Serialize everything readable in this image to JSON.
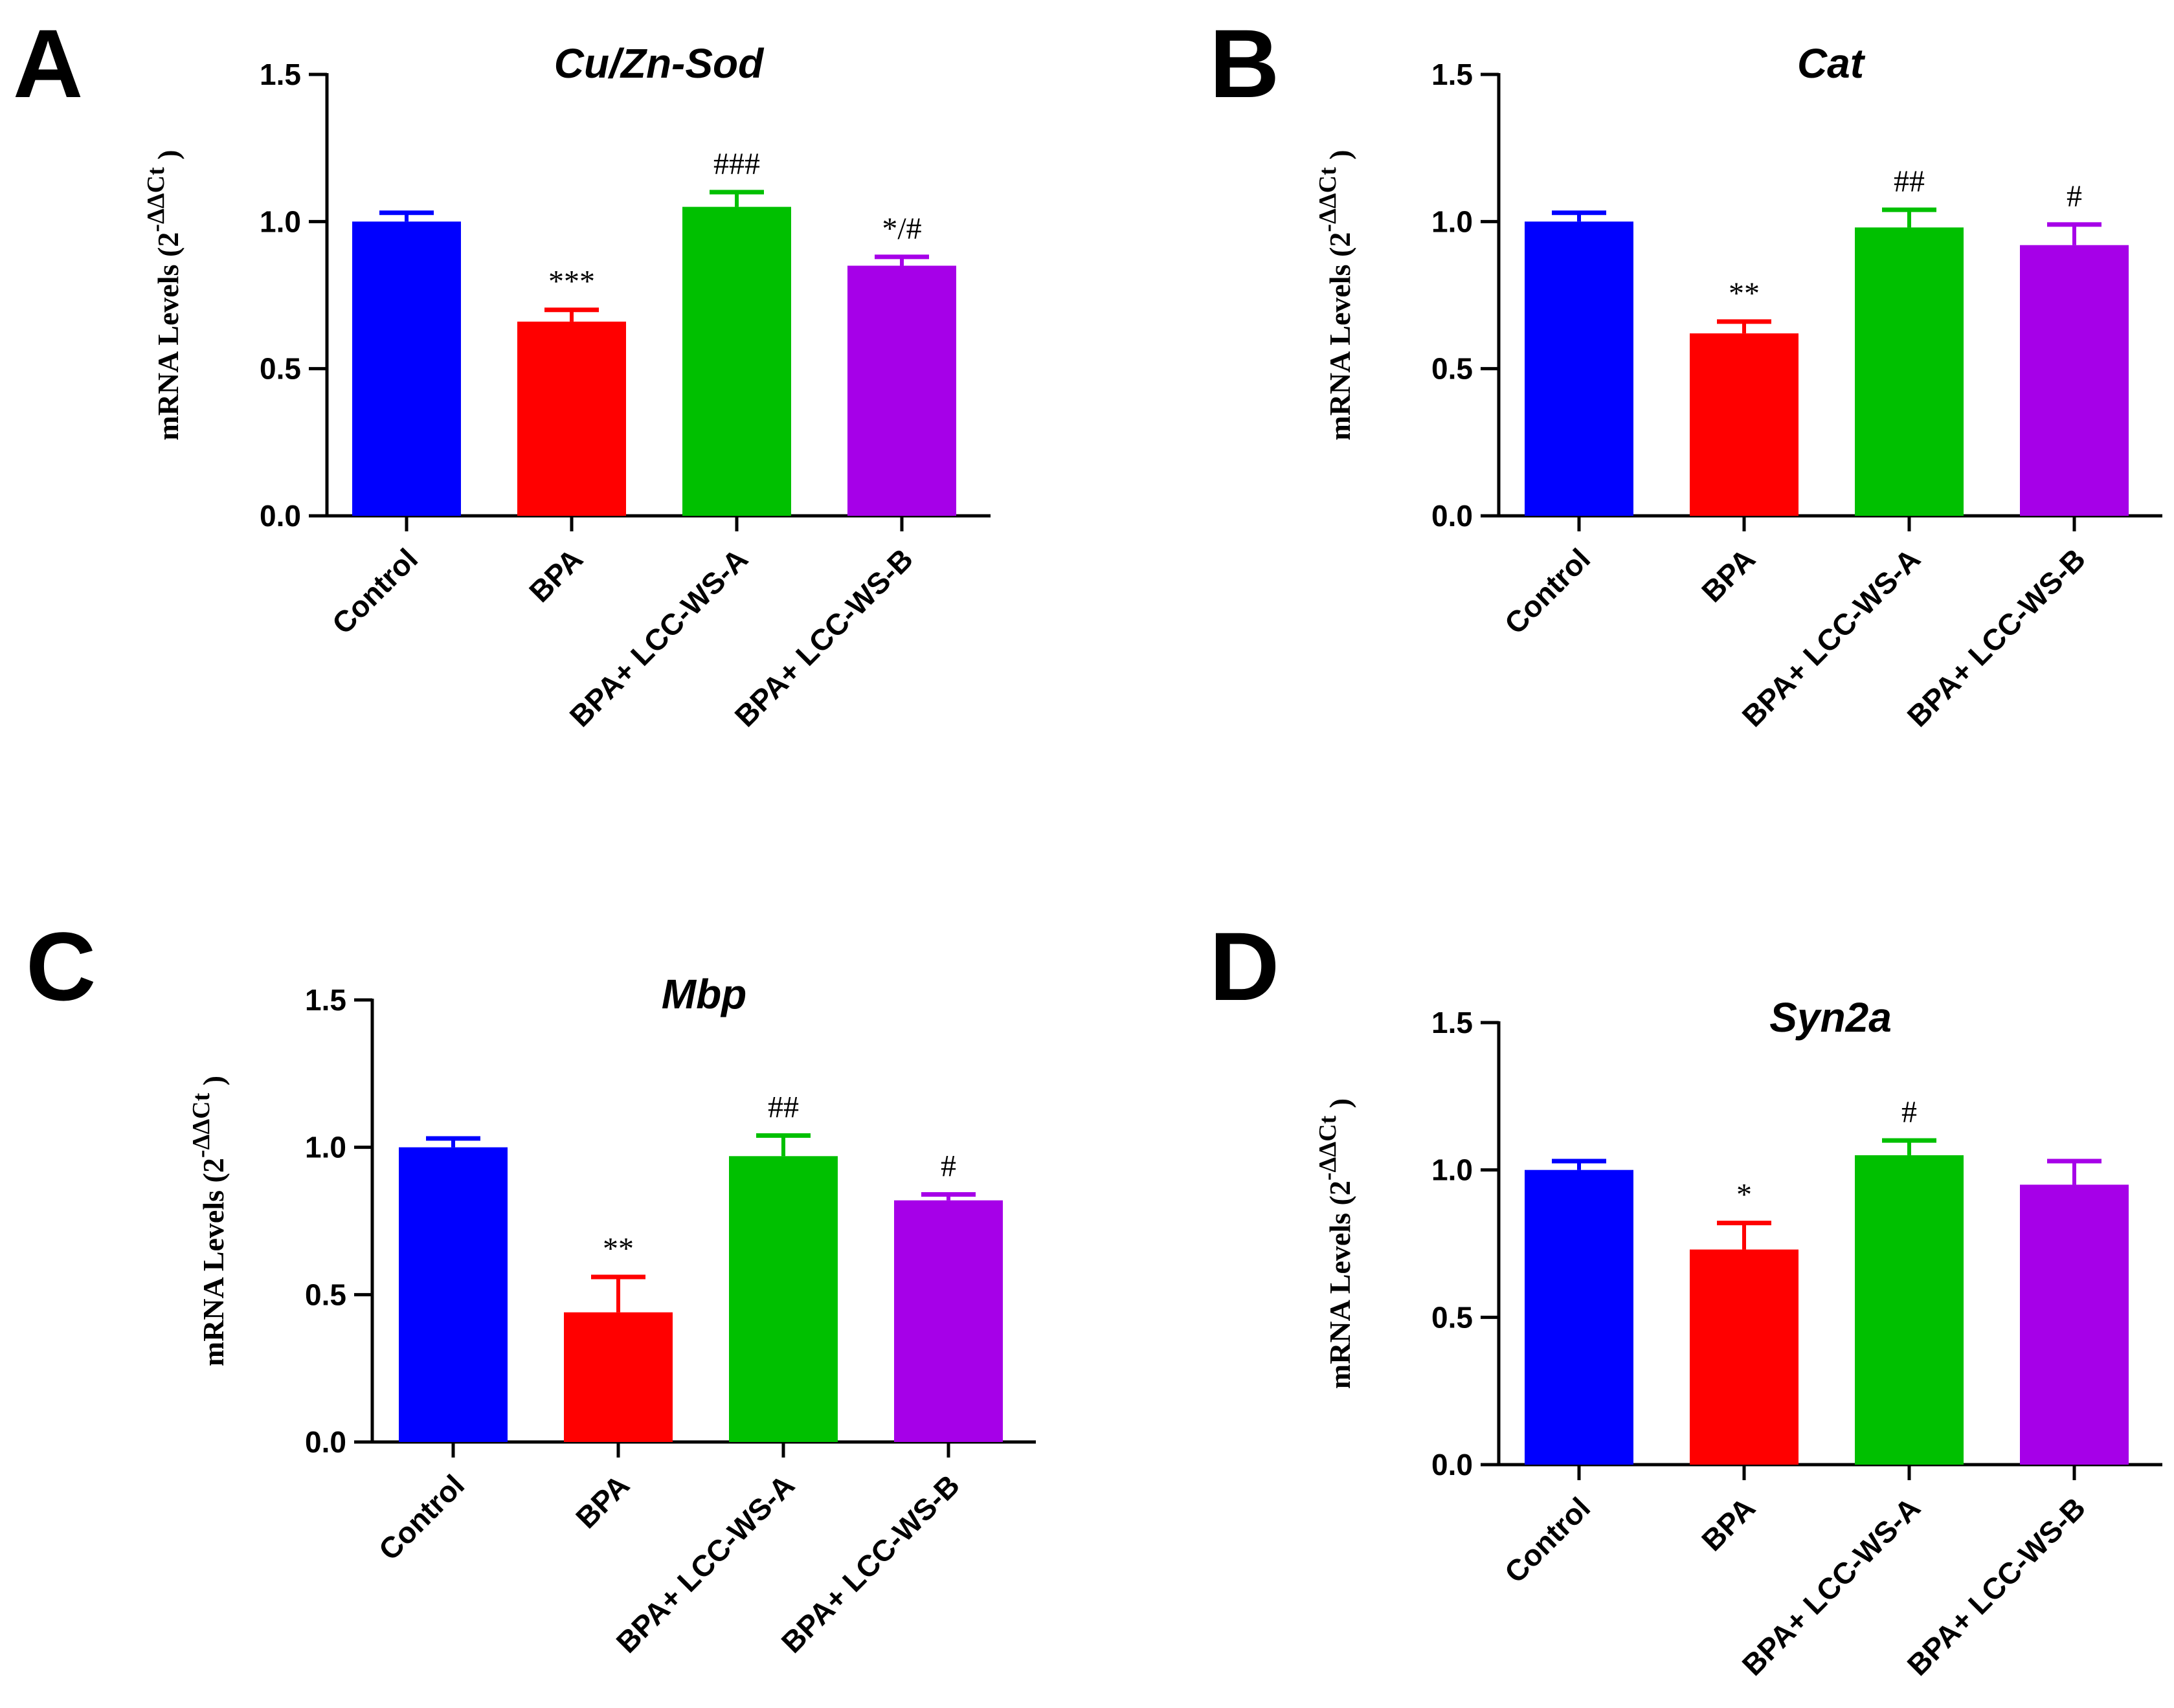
{
  "chart_data": [
    {
      "panel": "A",
      "type": "bar",
      "title": "Cu/Zn-Sod",
      "ylabel": "mRNA Levels (2",
      "ylabel_sup": "-ΔΔCt",
      "ylabel_close": ")",
      "ylim": [
        0,
        1.5
      ],
      "yticks": [
        "0.0",
        "0.5",
        "1.0",
        "1.5"
      ],
      "categories": [
        "Control",
        "BPA",
        "BPA+ LCC-WS-A",
        "BPA+ LCC-WS-B"
      ],
      "values": [
        1.0,
        0.66,
        1.05,
        0.85
      ],
      "errors": [
        0.03,
        0.04,
        0.05,
        0.03
      ],
      "significance": [
        "",
        "***",
        "###",
        "*/#"
      ],
      "colors": [
        "#0000ff",
        "#ff0000",
        "#00c000",
        "#a600e8"
      ],
      "grid": false
    },
    {
      "panel": "B",
      "type": "bar",
      "title": "Cat",
      "ylabel": "mRNA Levels (2",
      "ylabel_sup": "-ΔΔCt",
      "ylabel_close": ")",
      "ylim": [
        0,
        1.5
      ],
      "yticks": [
        "0.0",
        "0.5",
        "1.0",
        "1.5"
      ],
      "categories": [
        "Control",
        "BPA",
        "BPA+ LCC-WS-A",
        "BPA+ LCC-WS-B"
      ],
      "values": [
        1.0,
        0.62,
        0.98,
        0.92
      ],
      "errors": [
        0.03,
        0.04,
        0.06,
        0.07
      ],
      "significance": [
        "",
        "**",
        "##",
        "#"
      ],
      "colors": [
        "#0000ff",
        "#ff0000",
        "#00c000",
        "#a600e8"
      ],
      "grid": false
    },
    {
      "panel": "C",
      "type": "bar",
      "title": "Mbp",
      "ylabel": "mRNA Levels (2",
      "ylabel_sup": "-ΔΔCt",
      "ylabel_close": ")",
      "ylim": [
        0,
        1.5
      ],
      "yticks": [
        "0.0",
        "0.5",
        "1.0",
        "1.5"
      ],
      "categories": [
        "Control",
        "BPA",
        "BPA+ LCC-WS-A",
        "BPA+ LCC-WS-B"
      ],
      "values": [
        1.0,
        0.44,
        0.97,
        0.82
      ],
      "errors": [
        0.03,
        0.12,
        0.07,
        0.02
      ],
      "significance": [
        "",
        "**",
        "##",
        "#"
      ],
      "colors": [
        "#0000ff",
        "#ff0000",
        "#00c000",
        "#a600e8"
      ],
      "grid": false
    },
    {
      "panel": "D",
      "type": "bar",
      "title": "Syn2a",
      "ylabel": "mRNA Levels (2",
      "ylabel_sup": "-ΔΔCt",
      "ylabel_close": ")",
      "ylim": [
        0,
        1.5
      ],
      "yticks": [
        "0.0",
        "0.5",
        "1.0",
        "1.5"
      ],
      "categories": [
        "Control",
        "BPA",
        "BPA+ LCC-WS-A",
        "BPA+ LCC-WS-B"
      ],
      "values": [
        1.0,
        0.73,
        1.05,
        0.95
      ],
      "errors": [
        0.03,
        0.09,
        0.05,
        0.08
      ],
      "significance": [
        "",
        "*",
        "#",
        ""
      ],
      "colors": [
        "#0000ff",
        "#ff0000",
        "#00c000",
        "#a600e8"
      ],
      "grid": false
    }
  ]
}
